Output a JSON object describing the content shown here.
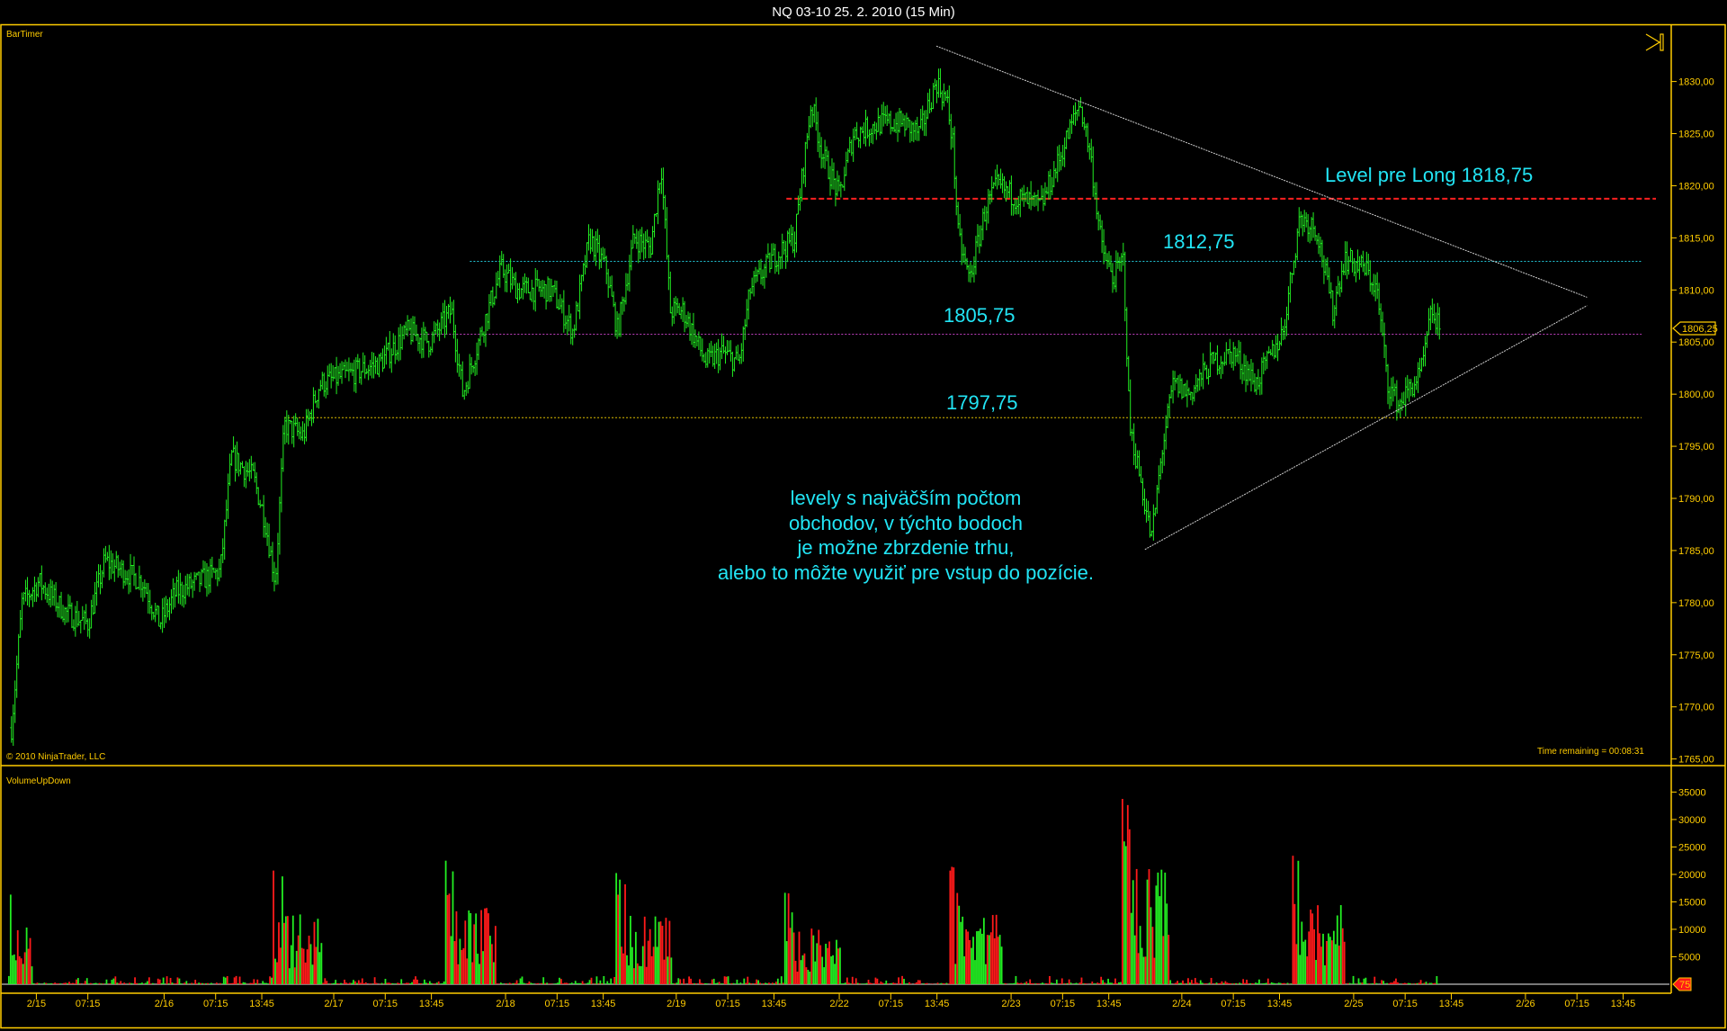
{
  "window": {
    "title": "NQ 03-10  25. 2. 2010 (15 Min)"
  },
  "price_panel": {
    "indicator_label": "BarTimer",
    "copyright": "© 2010 NinjaTrader, LLC",
    "time_remaining": "Time remaining = 00:08:31",
    "last_price_marker": "1806,25",
    "icon": "play-to-end-icon"
  },
  "volume_panel": {
    "indicator_label": "VolumeUpDown",
    "last_volume_marker": "75"
  },
  "annotations": {
    "level_long": "Level pre Long 1818,75",
    "level_1": "1812,75",
    "level_2": "1805,75",
    "level_3": "1797,75",
    "note_lines": [
      "levely s najväčším počtom",
      "obchodov, v týchto bodoch",
      "je možne zbrzdenie trhu,",
      "alebo to môžte využiť pre vstup do pozície."
    ]
  },
  "colors": {
    "up": "#22ee22",
    "down": "#ff1a1a",
    "axis": "#ffcc00",
    "annotation": "#22e5f5",
    "long_level": "#ff2020",
    "level_1": "#22c8d8",
    "level_2": "#c040c0",
    "level_3": "#e0c000",
    "trendline": "#d0d0d0"
  },
  "chart_data": [
    {
      "type": "ohlc",
      "y_ticks": [
        "1830,00",
        "1825,00",
        "1820,00",
        "1815,00",
        "1810,00",
        "1805,00",
        "1800,00",
        "1795,00",
        "1790,00",
        "1785,00",
        "1780,00",
        "1775,00",
        "1770,00",
        "1765,00"
      ],
      "ylim": [
        1765,
        1830
      ],
      "x_ticks": [
        "2/15",
        "07:15",
        "2/16",
        "07:15",
        "13:45",
        "2/17",
        "07:15",
        "13:45",
        "2/18",
        "07:15",
        "13:45",
        "2/19",
        "07:15",
        "13:45",
        "2/22",
        "07:15",
        "13:45",
        "2/23",
        "07:15",
        "13:45",
        "2/24",
        "07:15",
        "13:45",
        "2/25",
        "07:15",
        "13:45",
        "2/26",
        "07:15",
        "13:45"
      ],
      "close_path": [
        [
          "2/14 20:30",
          1768
        ],
        [
          "2/14 22:00",
          1780
        ],
        [
          "2/15 00:20",
          1782
        ],
        [
          "2/15 04:10",
          1779
        ],
        [
          "2/15 07:17",
          1778
        ],
        [
          "2/15 09:37",
          1784
        ],
        [
          "2/15 15:00",
          1782
        ],
        [
          "2/15 17:20",
          1778
        ],
        [
          "2/16 01:40",
          1781
        ],
        [
          "2/16 07:55",
          1783
        ],
        [
          "2/16 09:30",
          1794
        ],
        [
          "2/16 12:35",
          1792
        ],
        [
          "2/16 14:10",
          1788
        ],
        [
          "2/16 15:40",
          1782
        ],
        [
          "2/16 16:55",
          1797
        ],
        [
          "2/16 19:35",
          1796
        ],
        [
          "2/16 21:55",
          1801
        ],
        [
          "2/17 02:40",
          1802
        ],
        [
          "2/17 06:30",
          1803
        ],
        [
          "2/17 10:25",
          1806
        ],
        [
          "2/17 13:30",
          1805
        ],
        [
          "2/17 16:35",
          1808
        ],
        [
          "2/17 18:10",
          1800
        ],
        [
          "2/17 21:15",
          1807
        ],
        [
          "2/17 23:35",
          1812
        ],
        [
          "2/18 01:45",
          1810
        ],
        [
          "2/18 06:25",
          1810
        ],
        [
          "2/18 09:30",
          1806
        ],
        [
          "2/18 11:50",
          1815
        ],
        [
          "2/18 14:10",
          1812
        ],
        [
          "2/18 15:45",
          1806
        ],
        [
          "2/18 18:05",
          1815
        ],
        [
          "2/18 20:25",
          1814
        ],
        [
          "2/18 21:55",
          1822
        ],
        [
          "2/18 23:10",
          1808
        ],
        [
          "2/19 01:00",
          1808
        ],
        [
          "2/19 04:10",
          1803
        ],
        [
          "2/19 06:30",
          1804
        ],
        [
          "2/19 08:50",
          1803
        ],
        [
          "2/19 10:25",
          1810
        ],
        [
          "2/19 13:30",
          1813
        ],
        [
          "2/19 16:40",
          1815
        ],
        [
          "2/19 19:00",
          1828
        ],
        [
          "2/19 20:35",
          1823
        ],
        [
          "2/19 22:55",
          1819
        ],
        [
          "2/22 02:00",
          1825
        ],
        [
          "2/22 05:50",
          1826
        ],
        [
          "2/22 09:00",
          1826
        ],
        [
          "2/22 11:20",
          1825
        ],
        [
          "2/22 13:40",
          1830
        ],
        [
          "2/22 15:10",
          1828
        ],
        [
          "2/22 16:00",
          1824
        ],
        [
          "2/22 16:45",
          1815
        ],
        [
          "2/22 18:20",
          1811
        ],
        [
          "2/22 20:40",
          1818
        ],
        [
          "2/22 22:15",
          1820
        ],
        [
          "2/23 00:20",
          1819
        ],
        [
          "2/23 04:10",
          1818
        ],
        [
          "2/23 06:30",
          1822
        ],
        [
          "2/23 09:40",
          1828
        ],
        [
          "2/23 11:10",
          1823
        ],
        [
          "2/23 12:45",
          1814
        ],
        [
          "2/23 14:20",
          1811
        ],
        [
          "2/23 15:50",
          1813
        ],
        [
          "2/23 16:40",
          1797
        ],
        [
          "2/23 18:10",
          1792
        ],
        [
          "2/23 19:45",
          1786
        ],
        [
          "2/23 21:20",
          1795
        ],
        [
          "2/23 22:50",
          1801
        ],
        [
          "2/24 01:05",
          1800
        ],
        [
          "2/24 04:10",
          1803
        ],
        [
          "2/24 07:15",
          1804
        ],
        [
          "2/24 10:25",
          1801
        ],
        [
          "2/24 12:45",
          1804
        ],
        [
          "2/24 14:15",
          1806
        ],
        [
          "2/24 16:35",
          1817
        ],
        [
          "2/24 18:55",
          1816
        ],
        [
          "2/24 21:15",
          1808
        ],
        [
          "2/24 22:50",
          1813
        ],
        [
          "2/25 01:40",
          1812
        ],
        [
          "2/25 03:15",
          1810
        ],
        [
          "2/25 04:50",
          1801
        ],
        [
          "2/25 06:20",
          1799
        ],
        [
          "2/25 09:30",
          1802
        ],
        [
          "2/25 11:00",
          1808
        ],
        [
          "2/25 12:05",
          1806.25
        ]
      ],
      "horizontal_levels": [
        {
          "price": 1818.75,
          "from": "2/19 15:30",
          "style": "dashed",
          "color_key": "long_level"
        },
        {
          "price": 1812.75,
          "from": "2/17 19:10",
          "style": "dotted",
          "color_key": "level_1"
        },
        {
          "price": 1805.75,
          "from": "2/17 10:10",
          "style": "dotted",
          "color_key": "level_2"
        },
        {
          "price": 1797.75,
          "from": "2/16 16:55",
          "style": "dotted",
          "color_key": "level_3"
        }
      ],
      "trendlines": [
        {
          "from": [
            "2/22 13:40",
            1833.4
          ],
          "to": [
            "2/26 08:40",
            1809.3
          ]
        },
        {
          "from": [
            "2/23 18:50",
            1785.1
          ],
          "to": [
            "2/26 08:40",
            1808.5
          ]
        }
      ]
    },
    {
      "type": "bar",
      "series_name": "VolumeUpDown",
      "y_ticks": [
        "35000",
        "30000",
        "25000",
        "20000",
        "15000",
        "10000",
        "5000"
      ],
      "ylim": [
        0,
        37500
      ],
      "high_volume_sessions": [
        {
          "start": "2/14 20:10",
          "end": "2/14 23:25",
          "peak": 18500
        },
        {
          "start": "2/16 15:20",
          "end": "2/16 22:20",
          "peak": 23000
        },
        {
          "start": "2/17 15:35",
          "end": "2/17 23:00",
          "peak": 25000
        },
        {
          "start": "2/18 15:25",
          "end": "2/18 23:20",
          "peak": 22500
        },
        {
          "start": "2/19 15:10",
          "end": "2/22 00:10",
          "peak": 18500
        },
        {
          "start": "2/22 15:30",
          "end": "2/22 23:00",
          "peak": 23000
        },
        {
          "start": "2/23 15:30",
          "end": "2/23 22:20",
          "peak": 37500
        },
        {
          "start": "2/24 15:30",
          "end": "2/24 22:55",
          "peak": 26000
        }
      ],
      "last_value": 75
    }
  ]
}
